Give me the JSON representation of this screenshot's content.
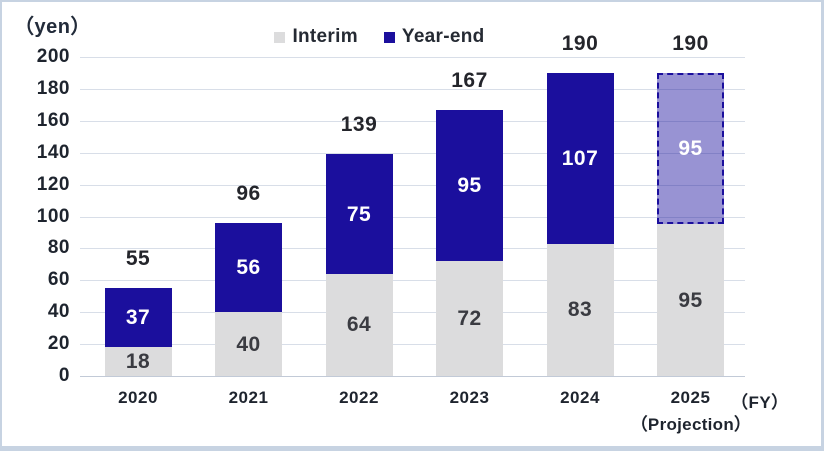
{
  "unit_label": "（yen）",
  "axis_suffix": "（FY）",
  "projection_note": "（Projection）",
  "legend": [
    {
      "label": "Interim",
      "color": "#dcdcdd"
    },
    {
      "label": "Year-end",
      "color": "#1b0f9d"
    }
  ],
  "colors": {
    "interim_bar": "#dcdcdd",
    "yearend_bar": "#1b0f9d",
    "projection_fill": "rgba(27,15,157,0.45)",
    "projection_border": "#1b0f9d",
    "interim_label_text": "#3a3b41",
    "yearend_label_text": "#ffffff",
    "gridline": "#d8dee8",
    "frame_border": "#c7d3e2"
  },
  "chart_data": {
    "type": "bar",
    "stacked": true,
    "title": "",
    "xlabel": "FY",
    "ylabel": "yen",
    "grid": true,
    "legend_position": "top-center",
    "categories": [
      "2020",
      "2021",
      "2022",
      "2023",
      "2024",
      "2025"
    ],
    "series": [
      {
        "name": "Interim",
        "values": [
          18,
          40,
          64,
          72,
          83,
          95
        ]
      },
      {
        "name": "Year-end",
        "values": [
          37,
          56,
          75,
          95,
          107,
          95
        ]
      }
    ],
    "totals": [
      55,
      96,
      139,
      167,
      190,
      190
    ],
    "ylim": [
      0,
      200
    ],
    "ytick_step": 20,
    "yticks": [
      0,
      20,
      40,
      60,
      80,
      100,
      120,
      140,
      160,
      180,
      200
    ],
    "projection_index": 5
  }
}
